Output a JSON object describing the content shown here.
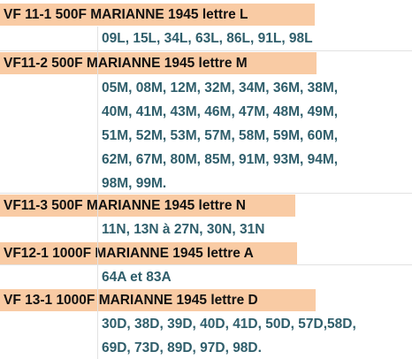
{
  "sections": [
    {
      "header": "VF 11-1  500F MARIANNE 1945  lettre L",
      "lines": [
        "09L, 15L, 34L, 63L, 86L, 91L, 98L"
      ]
    },
    {
      "header": "VF11-2  500F MARIANNE 1945  lettre M",
      "lines": [
        "05M, 08M, 12M, 32M, 34M, 36M, 38M,",
        "40M, 41M, 43M, 46M, 47M, 48M, 49M,",
        "51M, 52M, 53M, 57M, 58M, 59M, 60M,",
        "62M, 67M, 80M, 85M, 91M, 93M, 94M,",
        "98M, 99M."
      ]
    },
    {
      "header": "VF11-3  500F MARIANNE 1945 lettre N",
      "lines": [
        "11N, 13N à 27N, 30N, 31N"
      ]
    },
    {
      "header": "VF12-1  1000F MARIANNE 1945 lettre A",
      "lines": [
        "64A et 83A"
      ]
    },
    {
      "header": " VF 13-1  1000F MARIANNE 1945 lettre D",
      "lines": [
        "30D, 38D, 39D, 40D, 41D, 50D, 57D,58D,",
        "69D, 73D, 89D, 97D, 98D."
      ]
    }
  ],
  "colors": {
    "header_fill": "#f9cba4",
    "value_text": "#2f5e6b",
    "header_text": "#111111"
  }
}
